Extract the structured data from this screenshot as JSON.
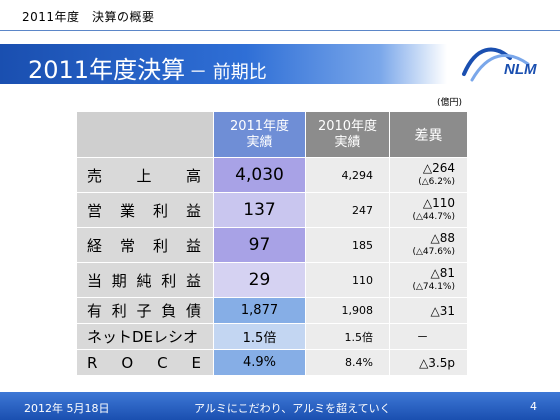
{
  "header": {
    "small_title": "2011年度　決算の概要",
    "title_main": "2011年度決算",
    "title_sub": "－ 前期比",
    "logo_text": "NLM"
  },
  "unit": "(億円)",
  "table": {
    "headers": {
      "col_2011": [
        "2011年度",
        "実績"
      ],
      "col_2010": [
        "2010年度",
        "実績"
      ],
      "col_diff": "差異"
    },
    "rows": [
      {
        "label_chars": [
          "売",
          "上",
          "高"
        ],
        "v2011": "4,030",
        "v2010": "4,294",
        "diff": "△264",
        "diff_pct": "(△6.2%)"
      },
      {
        "label_chars": [
          "営",
          "業",
          "利",
          "益"
        ],
        "v2011": "137",
        "v2010": "247",
        "diff": "△110",
        "diff_pct": "(△44.7%)"
      },
      {
        "label_chars": [
          "経",
          "常",
          "利",
          "益"
        ],
        "v2011": "97",
        "v2010": "185",
        "diff": "△88",
        "diff_pct": "(△47.6%)"
      },
      {
        "label_chars": [
          "当",
          "期",
          "純",
          "利",
          "益"
        ],
        "v2011": "29",
        "v2010": "110",
        "diff": "△81",
        "diff_pct": "(△74.1%)"
      },
      {
        "label_chars": [
          "有",
          "利",
          "子",
          "負",
          "債"
        ],
        "v2011": "1,877",
        "v2010": "1,908",
        "diff": "△31",
        "diff_pct": ""
      },
      {
        "label_chars": [
          "ネットDEレシオ"
        ],
        "v2011": "1.5倍",
        "v2010": "1.5倍",
        "diff": "－",
        "diff_pct": ""
      },
      {
        "label_chars": [
          "R",
          "O",
          "C",
          "E"
        ],
        "v2011": "4.9%",
        "v2010": "8.4%",
        "diff": "△3.5p",
        "diff_pct": ""
      }
    ]
  },
  "footer": {
    "date": "2012年 5月18日",
    "slogan": "アルミにこだわり、アルミを超えていく",
    "page": "4"
  },
  "colors": {
    "title_bar": "#1a4fb0",
    "header_2011": "#6f8ed6",
    "header_other": "#8c8c8c",
    "footer": "#1a4fb0"
  }
}
